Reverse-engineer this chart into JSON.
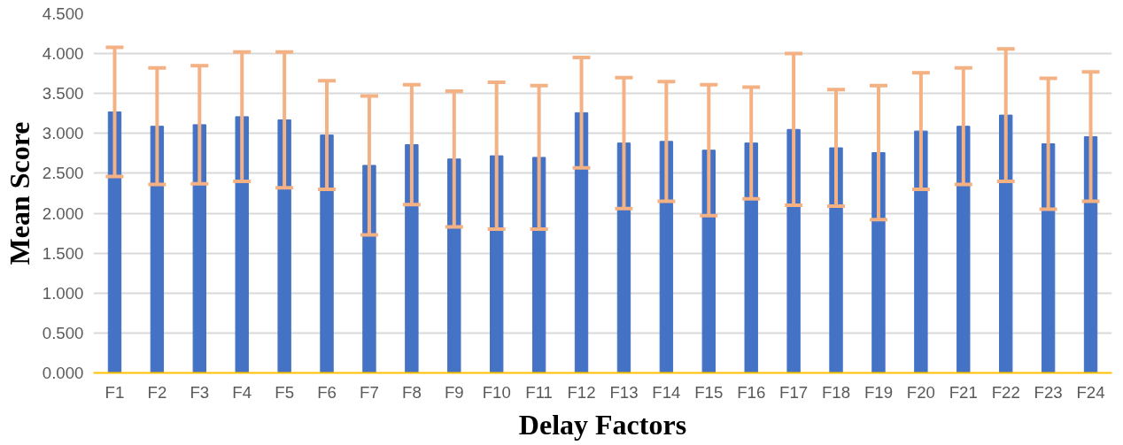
{
  "chart_data": {
    "type": "bar",
    "xlabel": "Delay Factors",
    "ylabel": "Mean Score",
    "categories": [
      "F1",
      "F2",
      "F3",
      "F4",
      "F5",
      "F6",
      "F7",
      "F8",
      "F9",
      "F10",
      "F11",
      "F12",
      "F13",
      "F14",
      "F15",
      "F16",
      "F17",
      "F18",
      "F19",
      "F20",
      "F21",
      "F22",
      "F23",
      "F24"
    ],
    "series": [
      {
        "color": "#4472c4",
        "values": [
          3.27,
          3.09,
          3.11,
          3.21,
          3.17,
          2.98,
          2.6,
          2.86,
          2.68,
          2.72,
          2.7,
          3.26,
          2.88,
          2.9,
          2.79,
          2.88,
          3.05,
          2.82,
          2.76,
          3.03,
          3.09,
          3.23,
          2.87,
          2.96
        ],
        "errors": [
          0.81,
          0.73,
          0.74,
          0.81,
          0.85,
          0.68,
          0.87,
          0.75,
          0.85,
          0.92,
          0.9,
          0.69,
          0.82,
          0.75,
          0.82,
          0.7,
          0.95,
          0.73,
          0.84,
          0.73,
          0.73,
          0.83,
          0.82,
          0.81
        ]
      }
    ],
    "ylim": [
      0,
      4.5
    ],
    "yticks": [
      {
        "value": 0,
        "label": "0.000"
      },
      {
        "value": 0.5,
        "label": "0.500"
      },
      {
        "value": 1,
        "label": "1.000"
      },
      {
        "value": 1.5,
        "label": "1.500"
      },
      {
        "value": 2,
        "label": "2.000"
      },
      {
        "value": 2.5,
        "label": "2.500"
      },
      {
        "value": 3,
        "label": "3.000"
      },
      {
        "value": 3.5,
        "label": "3.500"
      },
      {
        "value": 4,
        "label": "4.000"
      },
      {
        "value": 4.5,
        "label": "4.500"
      }
    ],
    "grid": "y"
  }
}
